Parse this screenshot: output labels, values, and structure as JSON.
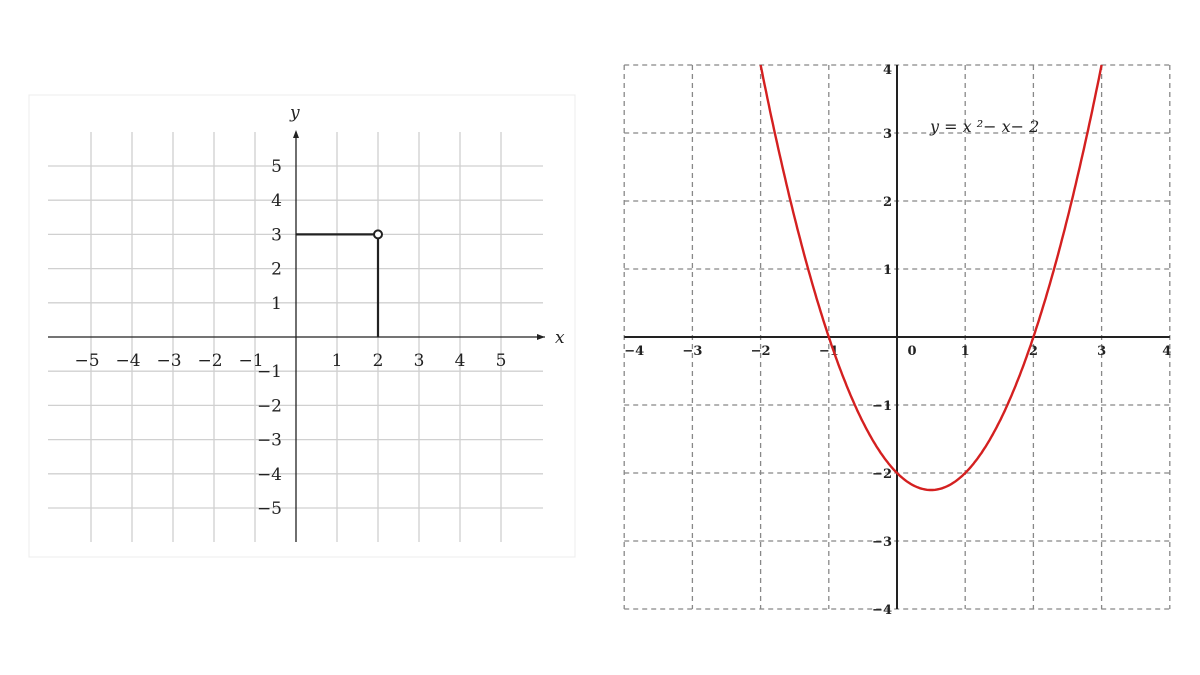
{
  "chart_data": [
    {
      "type": "line",
      "xlabel": "x",
      "ylabel": "y",
      "xlim": [
        -6,
        6
      ],
      "ylim": [
        -6,
        6
      ],
      "grid": true,
      "x_ticks": [
        "−5",
        "−4",
        "−3",
        "−2",
        "−1",
        "1",
        "2",
        "3",
        "4",
        "5"
      ],
      "y_ticks": [
        "5",
        "4",
        "3",
        "2",
        "1",
        "−1",
        "−2",
        "−3",
        "−4",
        "−5"
      ],
      "point": {
        "x": 2,
        "y": 3,
        "marker": "open-circle"
      },
      "series": [
        {
          "x": [
            0,
            2
          ],
          "y": [
            3,
            3
          ]
        },
        {
          "x": [
            2,
            2
          ],
          "y": [
            3,
            0
          ]
        }
      ],
      "colors": {
        "grid": "#d0d0d0",
        "axis": "#222222",
        "series": "#222222"
      }
    },
    {
      "type": "line",
      "xlim": [
        -4,
        4
      ],
      "ylim": [
        -4,
        4
      ],
      "grid": true,
      "grid_style": "dashed",
      "annotation": "y = x ²− x− 2",
      "x_ticks": [
        "−4",
        "−3",
        "−2",
        "−1",
        "0",
        "1",
        "2",
        "3",
        "4"
      ],
      "y_ticks": [
        "4",
        "3",
        "2",
        "1",
        "−1",
        "−2",
        "−3",
        "−4"
      ],
      "function": {
        "a": 1,
        "b": -1,
        "c": -2,
        "x_range": [
          -2,
          3
        ]
      },
      "colors": {
        "curve": "#d42020",
        "grid": "#888888",
        "axis": "#222222"
      }
    }
  ]
}
